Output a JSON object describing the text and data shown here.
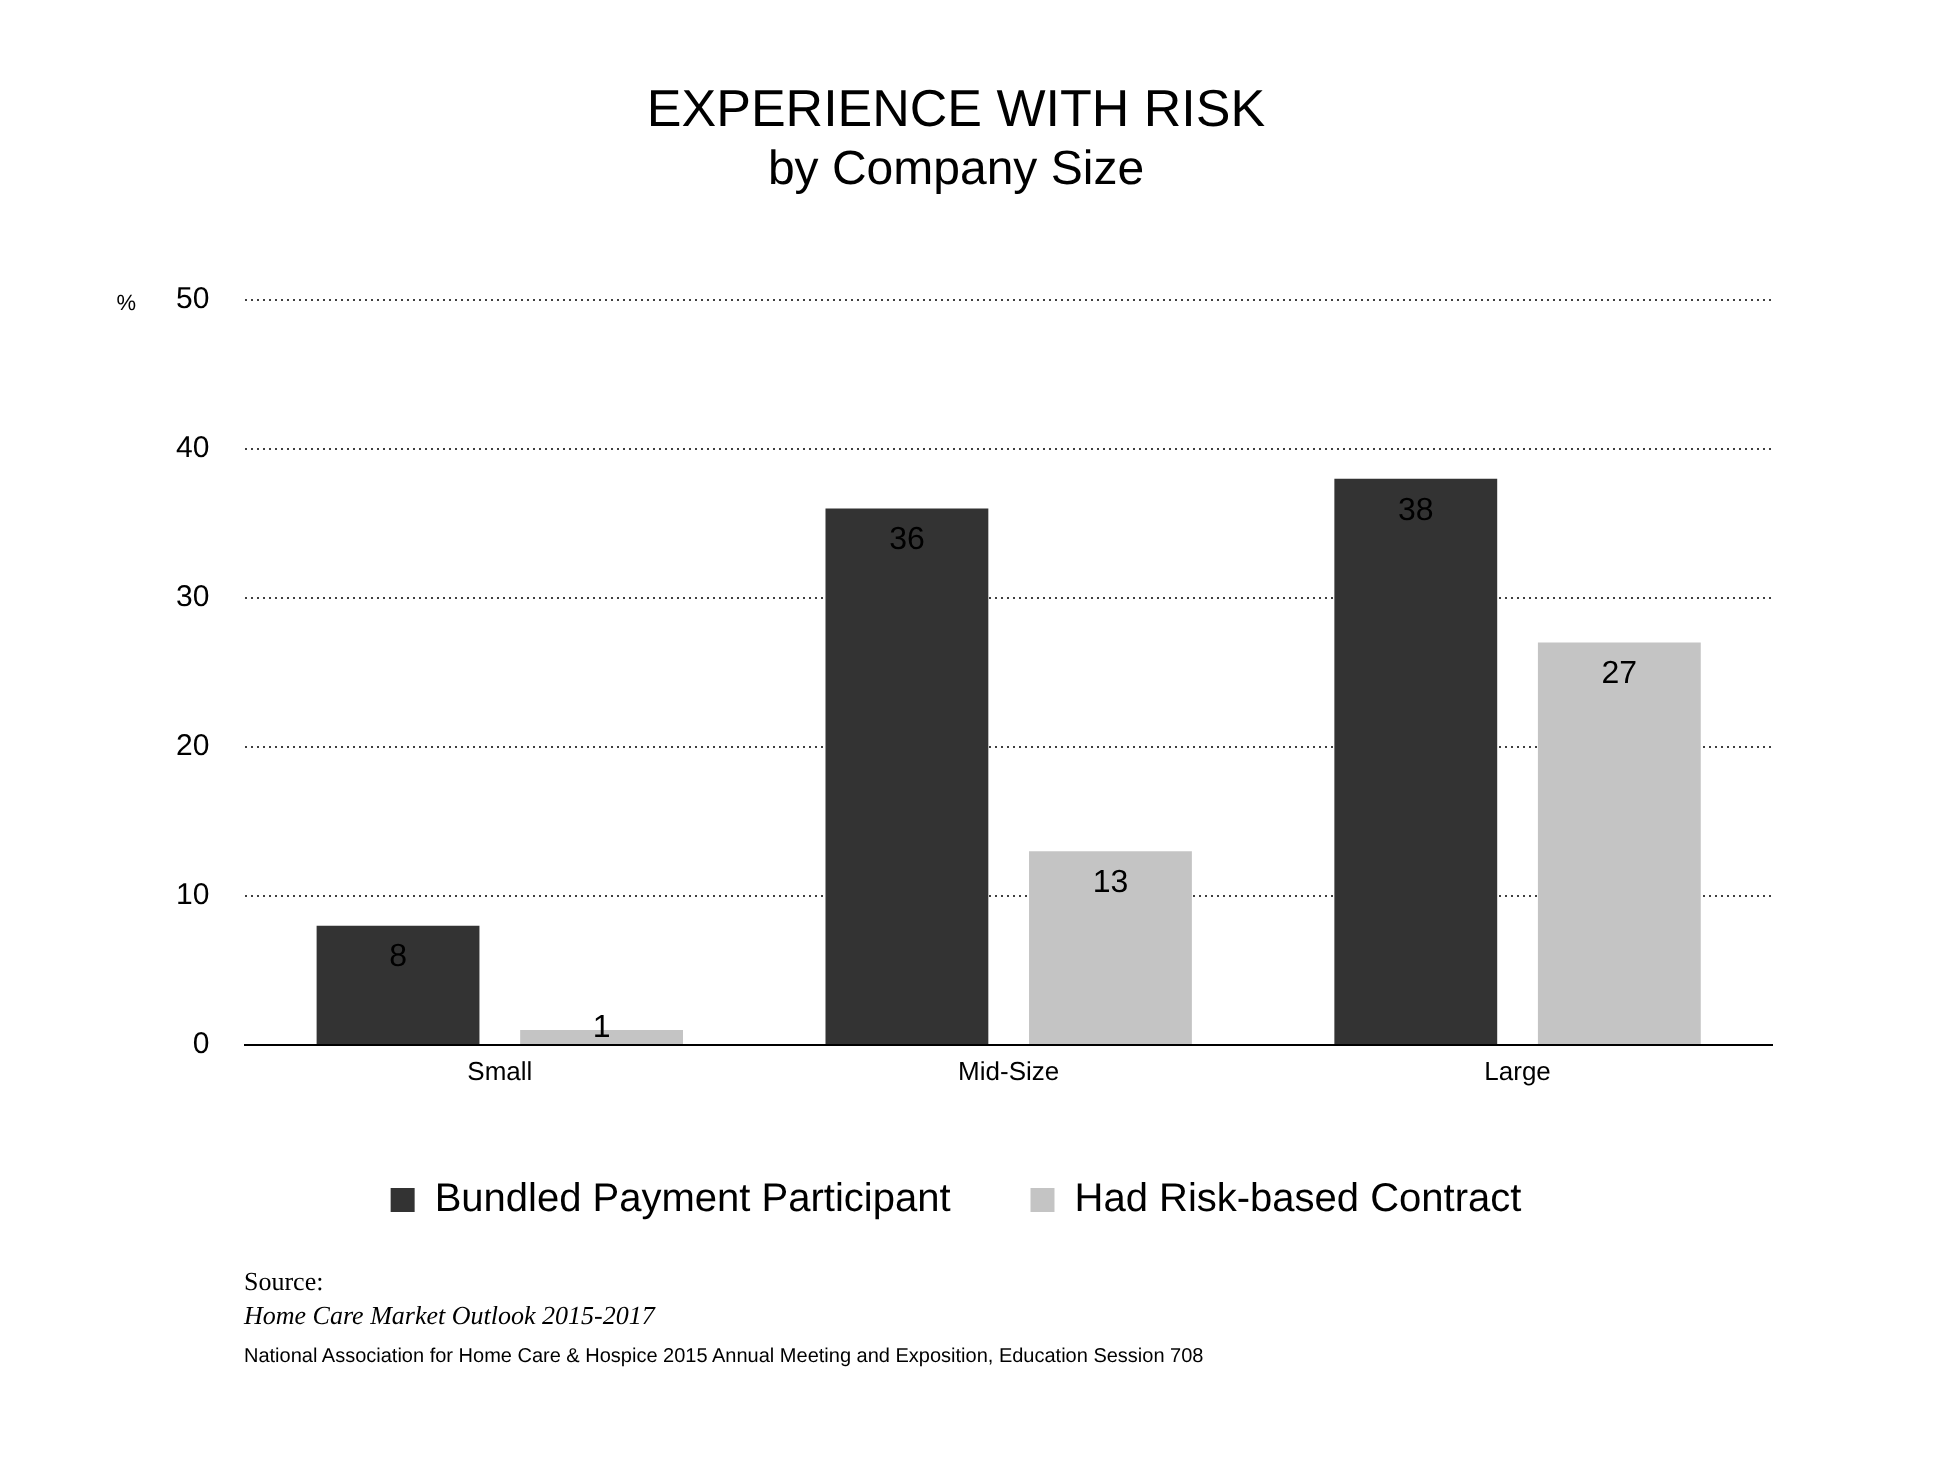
{
  "chart_data": {
    "type": "bar",
    "title": "EXPERIENCE WITH RISK",
    "subtitle": "by Company Size",
    "ylabel": "%",
    "categories": [
      "Small",
      "Mid-Size",
      "Large"
    ],
    "series": [
      {
        "name": "Bundled Payment Participant",
        "color": "#333333",
        "values": [
          8,
          36,
          38
        ]
      },
      {
        "name": "Had Risk-based Contract",
        "color": "#c4c4c4",
        "values": [
          1,
          13,
          27
        ]
      }
    ],
    "ylim": [
      0,
      50
    ],
    "yticks": [
      0,
      10,
      20,
      30,
      40,
      50
    ],
    "grid": "y",
    "legend": "bottom",
    "data_labels": true,
    "annotations": [
      "Source:",
      "Home Care Market Outlook 2015-2017",
      "National Association for Home Care & Hospice 2015 Annual Meeting and Exposition, Education Session 708"
    ]
  }
}
